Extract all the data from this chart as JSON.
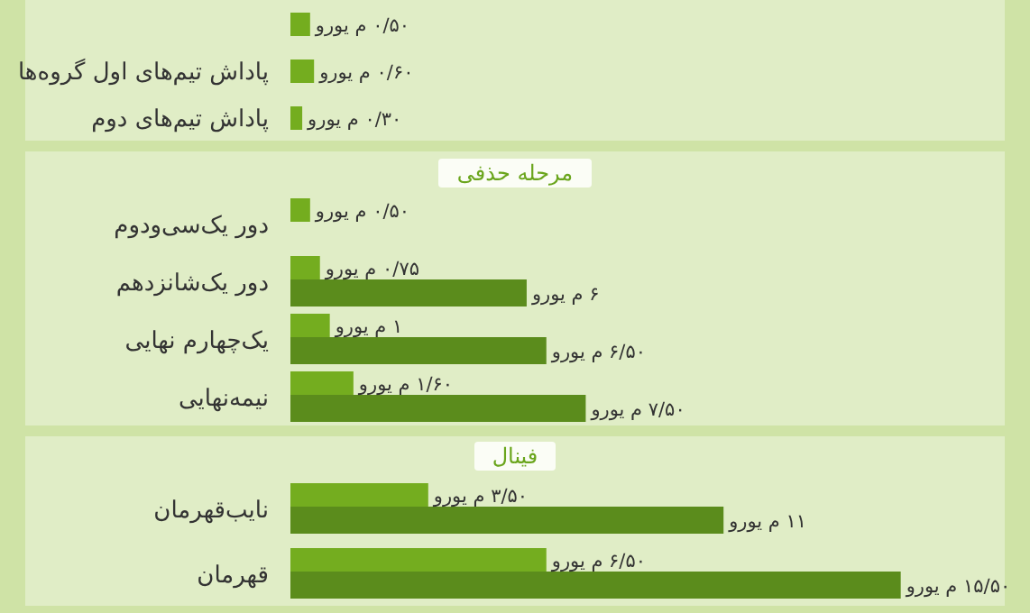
{
  "chart_data": [
    {
      "type": "bar",
      "orientation": "horizontal",
      "categories": [
        null,
        "پاداش تیم‌های اول گروه‌ها",
        "پاداش تیم‌های دوم"
      ],
      "series": [
        {
          "color": "#74ad1f",
          "values": [
            0.5,
            0.6,
            0.3
          ],
          "value_labels": [
            "۰/۵۰ م یورو",
            "۰/۶۰ م یورو",
            "۰/۳۰ م یورو"
          ]
        }
      ]
    },
    {
      "type": "bar",
      "orientation": "horizontal",
      "title": "مرحله حذفی",
      "categories": [
        "دور یک‌سی‌ودوم",
        "دور یک‌شانزدهم",
        "یک‌چهارم نهایی",
        "نیمه‌نهایی"
      ],
      "series": [
        {
          "color": "#74ad1f",
          "values": [
            0.5,
            0.75,
            1,
            1.6
          ],
          "value_labels": [
            "۰/۵۰ م یورو",
            "۰/۷۵ م یورو",
            "۱ م یورو",
            "۱/۶۰ م یورو"
          ]
        },
        {
          "color": "#5b8c1c",
          "values": [
            null,
            6,
            6.5,
            7.5
          ],
          "value_labels": [
            null,
            "۶ م یورو",
            "۶/۵۰ م یورو",
            "۷/۵۰ م یورو"
          ]
        }
      ]
    },
    {
      "type": "bar",
      "orientation": "horizontal",
      "title": "فینال",
      "categories": [
        "نایب‌قهرمان",
        "قهرمان"
      ],
      "series": [
        {
          "color": "#74ad1f",
          "values": [
            3.5,
            6.5
          ],
          "value_labels": [
            "۳/۵۰ م یورو",
            "۶/۵۰ م یورو"
          ]
        },
        {
          "color": "#5b8c1c",
          "values": [
            11,
            15.5
          ],
          "value_labels": [
            "۱۱ م یورو",
            "۱۵/۵۰ م یورو"
          ]
        }
      ]
    }
  ]
}
